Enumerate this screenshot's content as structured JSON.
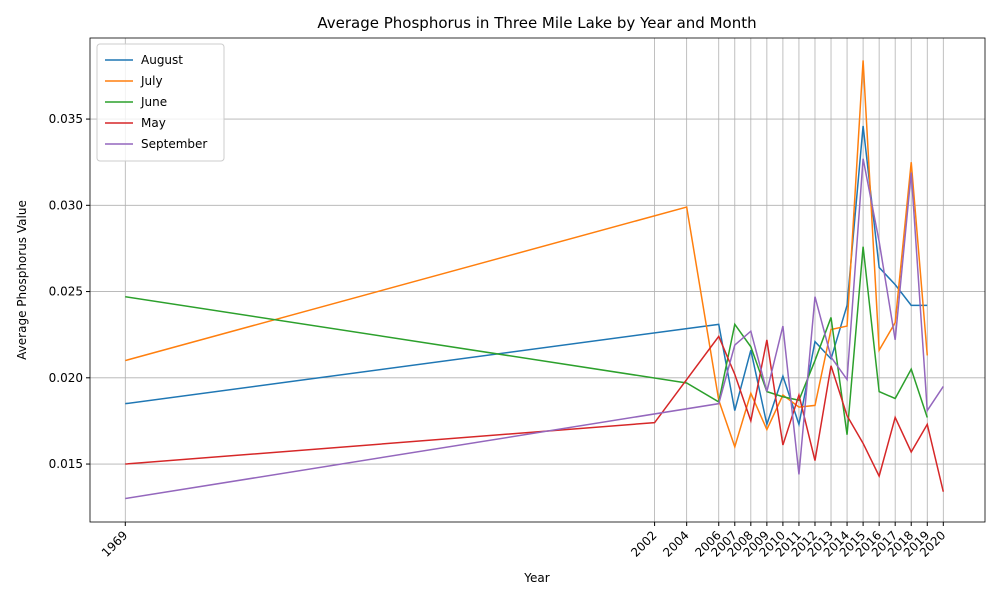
{
  "chart_data": {
    "type": "line",
    "title": "Average Phosphorus in Three Mile Lake by Year and Month",
    "x_label": "Year",
    "y_label": "Average Phosphorus Value",
    "xlim": [
      1966.8,
      2022.6
    ],
    "ylim": [
      0.01164,
      0.0397
    ],
    "xticks": [
      1969,
      2002,
      2004,
      2006,
      2007,
      2008,
      2009,
      2010,
      2011,
      2012,
      2013,
      2014,
      2015,
      2016,
      2017,
      2018,
      2019,
      2020
    ],
    "yticks": [
      0.015,
      {
        "value": 0.02,
        "label": "0.020"
      },
      0.025,
      {
        "value": 0.03,
        "label": "0.030"
      },
      0.035
    ],
    "grid": true,
    "legend": "upper left",
    "series": [
      {
        "name": "August",
        "color": "#1f77b4",
        "x": [
          1969,
          2006,
          2007,
          2008,
          2009,
          2010,
          2011,
          2012,
          2013,
          2014,
          2015,
          2016,
          2017,
          2018,
          2019
        ],
        "values": [
          0.0185,
          0.0231,
          0.0181,
          0.0216,
          0.0173,
          0.0201,
          0.0173,
          0.0221,
          0.0211,
          0.0242,
          0.0346,
          0.0264,
          0.0254,
          0.0242,
          0.0242
        ]
      },
      {
        "name": "July",
        "color": "#ff7f0e",
        "x": [
          1969,
          2004,
          2006,
          2007,
          2008,
          2009,
          2010,
          2011,
          2012,
          2013,
          2014,
          2015,
          2016,
          2017,
          2018,
          2019
        ],
        "values": [
          0.021,
          0.0299,
          0.0187,
          0.016,
          0.0191,
          0.017,
          0.019,
          0.0183,
          0.0184,
          0.0228,
          0.023,
          0.0384,
          0.0216,
          0.0232,
          0.0325,
          0.0213
        ]
      },
      {
        "name": "June",
        "color": "#2ca02c",
        "x": [
          1969,
          2004,
          2006,
          2007,
          2008,
          2009,
          2010,
          2011,
          2012,
          2013,
          2014,
          2015,
          2016,
          2017,
          2018,
          2019
        ],
        "values": [
          0.0247,
          0.0197,
          0.0186,
          0.0231,
          0.0218,
          0.0192,
          0.0189,
          0.0187,
          0.021,
          0.0235,
          0.0167,
          0.0276,
          0.0192,
          0.0188,
          0.0205,
          0.0177
        ]
      },
      {
        "name": "May",
        "color": "#d62728",
        "x": [
          1969,
          2002,
          2006,
          2007,
          2008,
          2009,
          2010,
          2011,
          2012,
          2013,
          2014,
          2015,
          2016,
          2017,
          2018,
          2019,
          2020
        ],
        "values": [
          0.015,
          0.0174,
          0.0224,
          0.0202,
          0.0175,
          0.0222,
          0.0161,
          0.019,
          0.0152,
          0.0207,
          0.0178,
          0.0162,
          0.0143,
          0.0177,
          0.0157,
          0.0173,
          0.0134
        ]
      },
      {
        "name": "September",
        "color": "#9467bd",
        "x": [
          1969,
          2006,
          2007,
          2008,
          2009,
          2010,
          2011,
          2012,
          2013,
          2014,
          2015,
          2016,
          2017,
          2018,
          2019,
          2020
        ],
        "values": [
          0.013,
          0.0185,
          0.0219,
          0.0227,
          0.0192,
          0.023,
          0.0144,
          0.0247,
          0.0212,
          0.0199,
          0.0327,
          0.0279,
          0.0222,
          0.0319,
          0.0181,
          0.0195
        ]
      }
    ]
  }
}
